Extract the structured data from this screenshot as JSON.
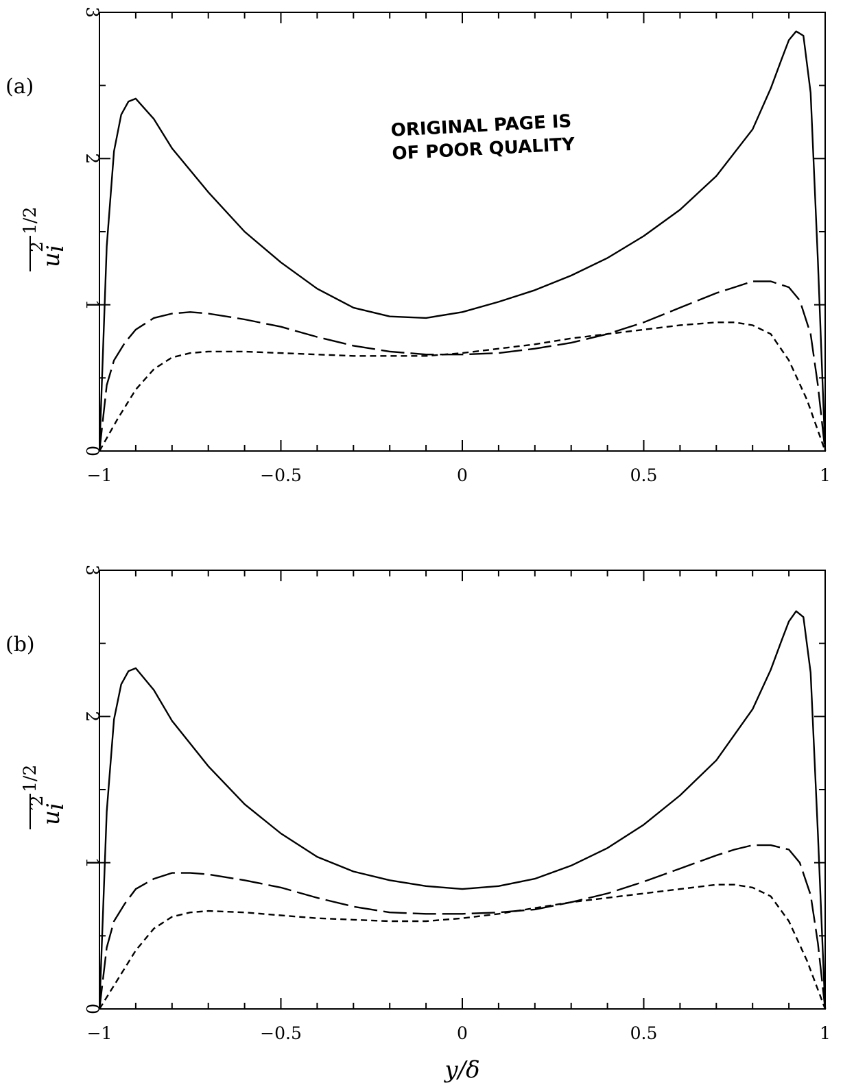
{
  "chart_data": [
    {
      "type": "line",
      "panel_label": "(a)",
      "xlabel": "",
      "ylabel": "",
      "ylabel_prime": false,
      "xlim": [
        -1,
        1
      ],
      "ylim": [
        0,
        3
      ],
      "xticks": [
        -1,
        -0.5,
        0,
        0.5,
        1
      ],
      "xtick_labels": [
        "−1",
        "−0.5",
        "0",
        "0.5",
        "1"
      ],
      "yticks": [
        0,
        1,
        2,
        3
      ],
      "ytick_labels": [
        "0",
        "1",
        "2",
        "3"
      ],
      "grid": false,
      "annotation_lines": [
        "ORIGINAL PAGE IS",
        "OF POOR QUALITY"
      ],
      "series": [
        {
          "style": "solid",
          "x": [
            -1,
            -0.98,
            -0.96,
            -0.94,
            -0.92,
            -0.9,
            -0.85,
            -0.8,
            -0.7,
            -0.6,
            -0.5,
            -0.4,
            -0.3,
            -0.2,
            -0.1,
            0,
            0.1,
            0.2,
            0.3,
            0.4,
            0.5,
            0.6,
            0.7,
            0.8,
            0.85,
            0.88,
            0.9,
            0.92,
            0.94,
            0.96,
            0.98,
            1
          ],
          "y": [
            0,
            1.4,
            2.05,
            2.3,
            2.39,
            2.41,
            2.27,
            2.07,
            1.77,
            1.5,
            1.29,
            1.11,
            0.98,
            0.92,
            0.91,
            0.95,
            1.02,
            1.1,
            1.2,
            1.32,
            1.47,
            1.65,
            1.88,
            2.2,
            2.48,
            2.68,
            2.81,
            2.87,
            2.84,
            2.45,
            1.3,
            0
          ]
        },
        {
          "style": "long-dash",
          "x": [
            -1,
            -0.98,
            -0.96,
            -0.93,
            -0.9,
            -0.85,
            -0.8,
            -0.75,
            -0.7,
            -0.6,
            -0.5,
            -0.4,
            -0.3,
            -0.2,
            -0.1,
            0,
            0.1,
            0.2,
            0.3,
            0.4,
            0.5,
            0.6,
            0.7,
            0.75,
            0.8,
            0.85,
            0.9,
            0.93,
            0.96,
            0.98,
            1
          ],
          "y": [
            0,
            0.45,
            0.62,
            0.74,
            0.83,
            0.91,
            0.94,
            0.95,
            0.94,
            0.9,
            0.85,
            0.78,
            0.72,
            0.68,
            0.66,
            0.66,
            0.67,
            0.7,
            0.74,
            0.8,
            0.88,
            0.98,
            1.08,
            1.12,
            1.16,
            1.16,
            1.12,
            1.03,
            0.8,
            0.45,
            0
          ]
        },
        {
          "style": "short-dash",
          "x": [
            -1,
            -0.95,
            -0.9,
            -0.85,
            -0.8,
            -0.75,
            -0.7,
            -0.6,
            -0.5,
            -0.4,
            -0.3,
            -0.2,
            -0.1,
            0,
            0.1,
            0.2,
            0.3,
            0.4,
            0.5,
            0.6,
            0.7,
            0.75,
            0.8,
            0.85,
            0.9,
            0.95,
            1
          ],
          "y": [
            0,
            0.22,
            0.42,
            0.56,
            0.64,
            0.67,
            0.68,
            0.68,
            0.67,
            0.66,
            0.65,
            0.65,
            0.65,
            0.67,
            0.7,
            0.73,
            0.77,
            0.8,
            0.83,
            0.86,
            0.88,
            0.88,
            0.86,
            0.8,
            0.62,
            0.35,
            0
          ]
        }
      ]
    },
    {
      "type": "line",
      "panel_label": "(b)",
      "xlabel": "y/δ",
      "ylabel": "",
      "ylabel_prime": true,
      "xlim": [
        -1,
        1
      ],
      "ylim": [
        0,
        3
      ],
      "xticks": [
        -1,
        -0.5,
        0,
        0.5,
        1
      ],
      "xtick_labels": [
        "−1",
        "−0.5",
        "0",
        "0.5",
        "1"
      ],
      "yticks": [
        0,
        1,
        2,
        3
      ],
      "ytick_labels": [
        "0",
        "1",
        "2",
        "3"
      ],
      "grid": false,
      "series": [
        {
          "style": "solid",
          "x": [
            -1,
            -0.98,
            -0.96,
            -0.94,
            -0.92,
            -0.9,
            -0.85,
            -0.8,
            -0.7,
            -0.6,
            -0.5,
            -0.4,
            -0.3,
            -0.2,
            -0.1,
            0,
            0.1,
            0.2,
            0.3,
            0.4,
            0.5,
            0.6,
            0.7,
            0.8,
            0.85,
            0.88,
            0.9,
            0.92,
            0.94,
            0.96,
            0.98,
            1
          ],
          "y": [
            0,
            1.35,
            1.98,
            2.22,
            2.31,
            2.33,
            2.18,
            1.97,
            1.66,
            1.4,
            1.2,
            1.04,
            0.94,
            0.88,
            0.84,
            0.82,
            0.84,
            0.89,
            0.98,
            1.1,
            1.26,
            1.46,
            1.7,
            2.05,
            2.32,
            2.52,
            2.65,
            2.72,
            2.68,
            2.3,
            1.2,
            0
          ]
        },
        {
          "style": "long-dash",
          "x": [
            -1,
            -0.98,
            -0.96,
            -0.93,
            -0.9,
            -0.85,
            -0.8,
            -0.75,
            -0.7,
            -0.6,
            -0.5,
            -0.4,
            -0.3,
            -0.2,
            -0.1,
            0,
            0.1,
            0.2,
            0.3,
            0.4,
            0.5,
            0.6,
            0.7,
            0.75,
            0.8,
            0.85,
            0.9,
            0.93,
            0.96,
            0.98,
            1
          ],
          "y": [
            0,
            0.42,
            0.6,
            0.72,
            0.82,
            0.89,
            0.93,
            0.93,
            0.92,
            0.88,
            0.83,
            0.76,
            0.7,
            0.66,
            0.65,
            0.65,
            0.66,
            0.68,
            0.73,
            0.79,
            0.87,
            0.96,
            1.05,
            1.09,
            1.12,
            1.12,
            1.09,
            1.0,
            0.78,
            0.45,
            0
          ]
        },
        {
          "style": "short-dash",
          "x": [
            -1,
            -0.95,
            -0.9,
            -0.85,
            -0.8,
            -0.75,
            -0.7,
            -0.6,
            -0.5,
            -0.4,
            -0.3,
            -0.2,
            -0.1,
            0,
            0.1,
            0.2,
            0.3,
            0.4,
            0.5,
            0.6,
            0.7,
            0.75,
            0.8,
            0.85,
            0.9,
            0.95,
            1
          ],
          "y": [
            0,
            0.2,
            0.4,
            0.55,
            0.63,
            0.66,
            0.67,
            0.66,
            0.64,
            0.62,
            0.61,
            0.6,
            0.6,
            0.62,
            0.65,
            0.69,
            0.73,
            0.76,
            0.79,
            0.82,
            0.85,
            0.85,
            0.83,
            0.77,
            0.6,
            0.33,
            0
          ]
        }
      ]
    }
  ]
}
